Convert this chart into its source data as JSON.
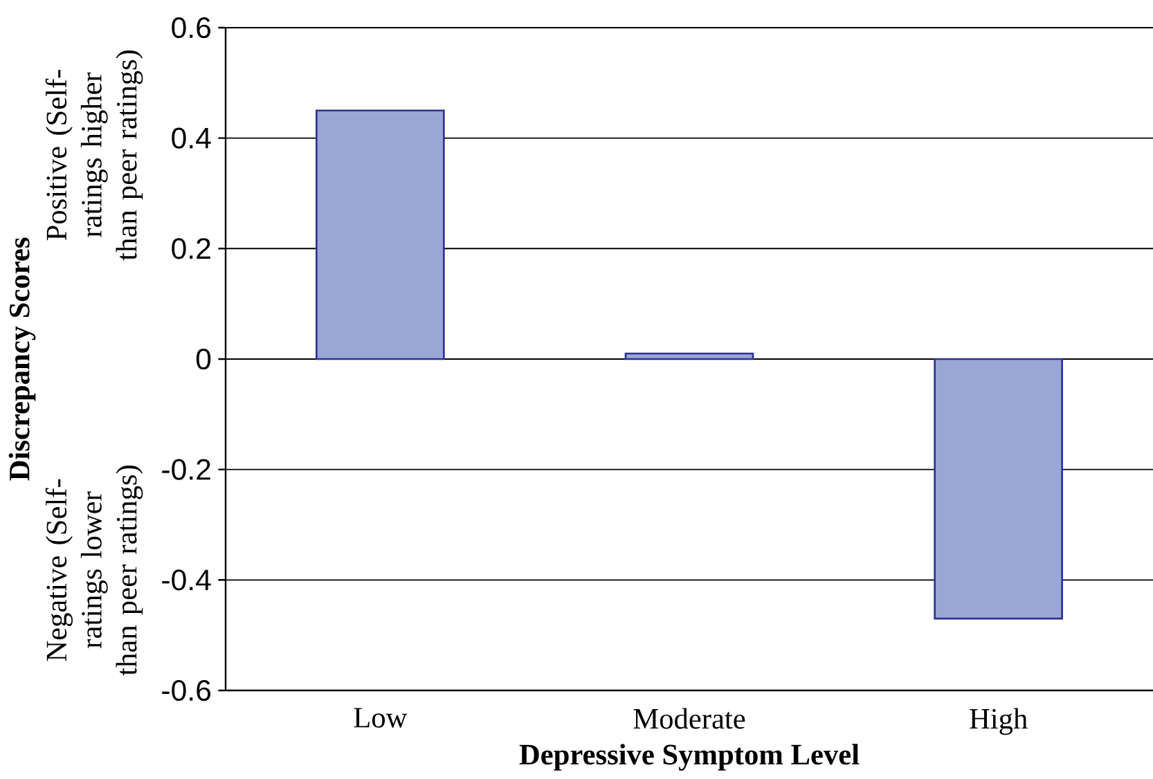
{
  "chart_data": {
    "type": "bar",
    "categories": [
      "Low",
      "Moderate",
      "High"
    ],
    "values": [
      0.45,
      0.01,
      -0.47
    ],
    "color": "#9aa6d4",
    "xlabel": "Depressive Symptom Level",
    "ylabel": "Discrepancy Scores",
    "ylim": [
      -0.6,
      0.6
    ],
    "yticks": [
      -0.6,
      -0.4,
      -0.2,
      0,
      0.2,
      0.4,
      0.6
    ],
    "grid": "y",
    "annotations": [
      "Positive (Self-ratings higher than peer ratings)",
      "Negative (Self-ratings lower than peer ratings)"
    ]
  }
}
